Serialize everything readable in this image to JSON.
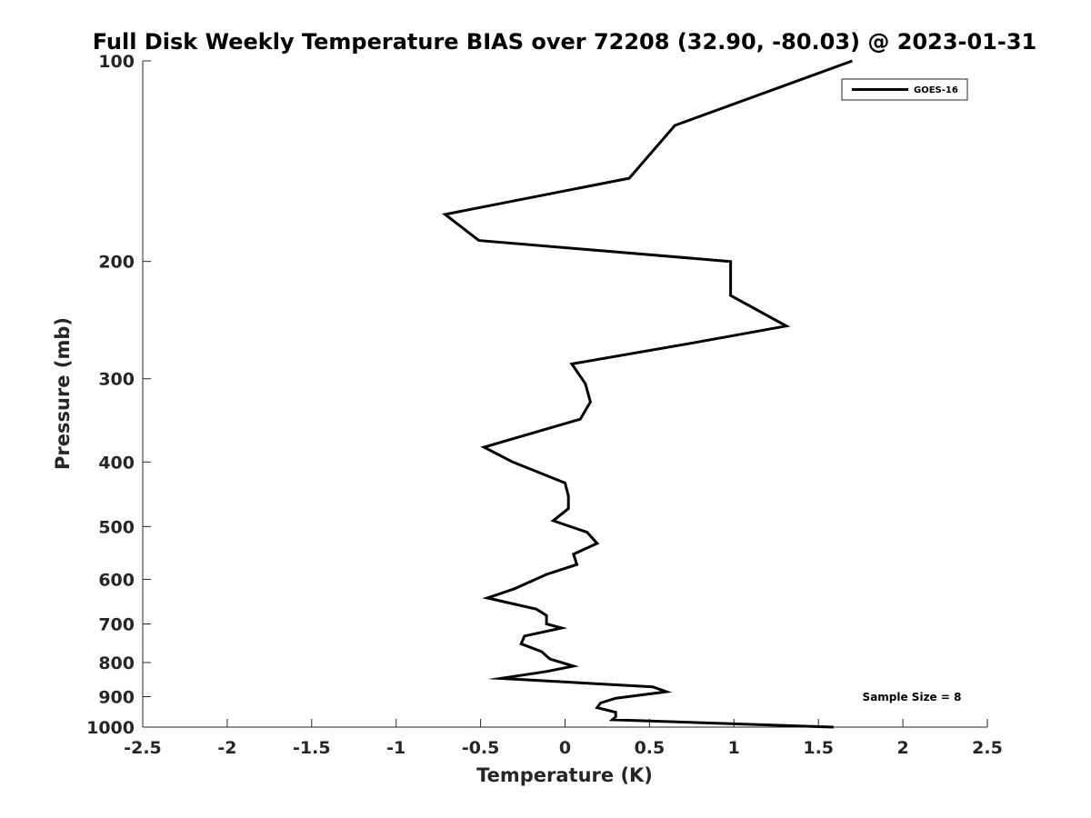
{
  "chart_data": {
    "type": "line",
    "title": "Full Disk Weekly Temperature BIAS over 72208 (32.90, -80.03) @ 2023-01-31",
    "xlabel": "Temperature (K)",
    "ylabel": "Pressure (mb)",
    "xlim": [
      -2.5,
      2.5
    ],
    "ylim": [
      100,
      1000
    ],
    "y_scale": "log",
    "y_reversed": true,
    "x_ticks": [
      -2.5,
      -2,
      -1.5,
      -1,
      -0.5,
      0,
      0.5,
      1,
      1.5,
      2,
      2.5
    ],
    "x_tick_labels": [
      "-2.5",
      "-2",
      "-1.5",
      "-1",
      "-0.5",
      "0",
      "0.5",
      "1",
      "1.5",
      "2",
      "2.5"
    ],
    "y_ticks": [
      100,
      200,
      300,
      400,
      500,
      600,
      700,
      800,
      900,
      1000
    ],
    "y_tick_labels": [
      "100",
      "200",
      "300",
      "400",
      "500",
      "600",
      "700",
      "800",
      "900",
      "1000"
    ],
    "grid": false,
    "legend_position": "top-right",
    "annotation": "Sample Size = 8",
    "series": [
      {
        "name": "GOES-16",
        "color": "#000000",
        "points": [
          {
            "x": 1.7,
            "y": 100
          },
          {
            "x": 0.65,
            "y": 125
          },
          {
            "x": 0.38,
            "y": 150
          },
          {
            "x": -0.71,
            "y": 170
          },
          {
            "x": -0.51,
            "y": 186
          },
          {
            "x": 0.98,
            "y": 200
          },
          {
            "x": 0.98,
            "y": 225
          },
          {
            "x": 1.31,
            "y": 250
          },
          {
            "x": 0.76,
            "y": 265
          },
          {
            "x": 0.04,
            "y": 285
          },
          {
            "x": 0.12,
            "y": 305
          },
          {
            "x": 0.15,
            "y": 325
          },
          {
            "x": 0.09,
            "y": 345
          },
          {
            "x": -0.48,
            "y": 380
          },
          {
            "x": -0.31,
            "y": 400
          },
          {
            "x": 0.0,
            "y": 430
          },
          {
            "x": 0.02,
            "y": 450
          },
          {
            "x": 0.02,
            "y": 470
          },
          {
            "x": -0.07,
            "y": 490
          },
          {
            "x": 0.13,
            "y": 510
          },
          {
            "x": 0.19,
            "y": 530
          },
          {
            "x": 0.05,
            "y": 550
          },
          {
            "x": 0.07,
            "y": 570
          },
          {
            "x": -0.11,
            "y": 590
          },
          {
            "x": -0.3,
            "y": 620
          },
          {
            "x": -0.46,
            "y": 640
          },
          {
            "x": -0.17,
            "y": 665
          },
          {
            "x": -0.11,
            "y": 680
          },
          {
            "x": -0.11,
            "y": 700
          },
          {
            "x": -0.02,
            "y": 710
          },
          {
            "x": -0.24,
            "y": 730
          },
          {
            "x": -0.26,
            "y": 750
          },
          {
            "x": -0.14,
            "y": 770
          },
          {
            "x": -0.09,
            "y": 790
          },
          {
            "x": 0.05,
            "y": 810
          },
          {
            "x": -0.11,
            "y": 825
          },
          {
            "x": -0.38,
            "y": 845
          },
          {
            "x": 0.52,
            "y": 870
          },
          {
            "x": 0.6,
            "y": 885
          },
          {
            "x": 0.3,
            "y": 905
          },
          {
            "x": 0.21,
            "y": 920
          },
          {
            "x": 0.19,
            "y": 935
          },
          {
            "x": 0.3,
            "y": 950
          },
          {
            "x": 0.3,
            "y": 965
          },
          {
            "x": 0.28,
            "y": 975
          },
          {
            "x": 1.59,
            "y": 1000
          }
        ]
      }
    ]
  }
}
